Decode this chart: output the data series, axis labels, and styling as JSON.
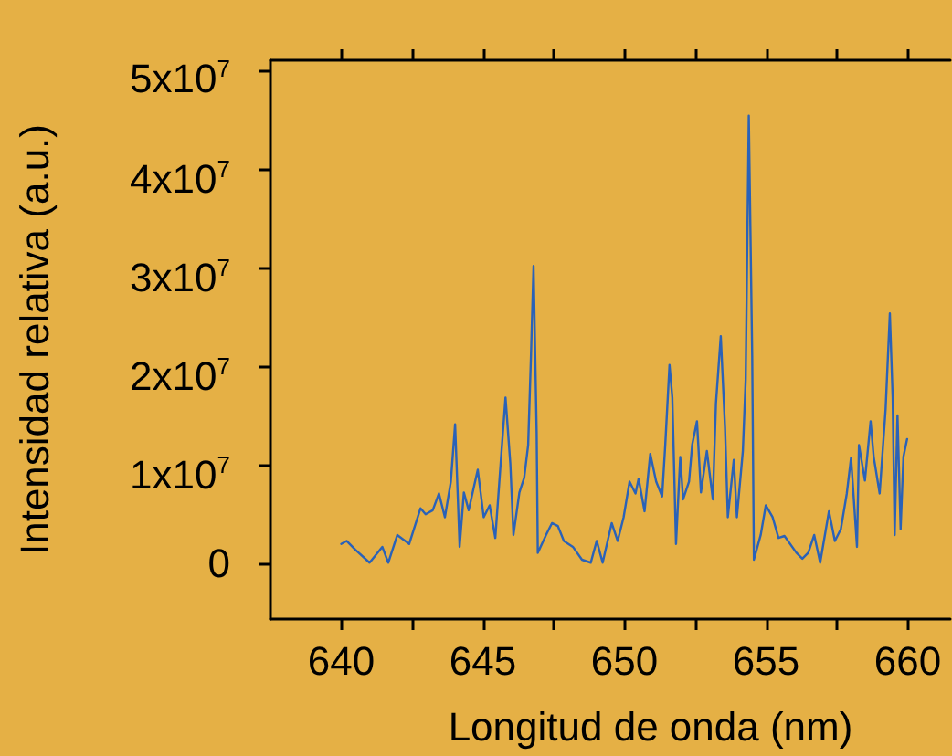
{
  "chart_data": {
    "type": "line",
    "xlabel": "Longitud de onda (nm)",
    "ylabel": "Intensidad relativa (a.u.)",
    "xlim": [
      637.5,
      661.5
    ],
    "ylim": [
      -5500000,
      51000000
    ],
    "xticks": [
      640,
      {
        "value": 642.5,
        "label": null
      },
      645,
      {
        "value": 647.5,
        "label": null
      },
      650,
      {
        "value": 652.5,
        "label": null
      },
      655,
      {
        "value": 657.5,
        "label": null
      },
      660
    ],
    "yticks": [
      0,
      {
        "value": 10000000,
        "label": "1x10$^{7}$"
      },
      {
        "value": 20000000,
        "label": "2x10$^{7}$"
      },
      {
        "value": 30000000,
        "label": "3x10$^{7}$"
      },
      {
        "value": 40000000,
        "label": "4x10$^{7}$"
      },
      {
        "value": 50000000,
        "label": "5x10$^{7}$"
      }
    ],
    "grid": false,
    "marker": "none",
    "line_style": "solid",
    "series": [
      {
        "color": "#2a62b8",
        "x": [
          640.0,
          640.19,
          640.5,
          641.0,
          641.45,
          641.66,
          641.98,
          642.4,
          642.6,
          642.8,
          642.98,
          643.23,
          643.45,
          643.66,
          643.87,
          644.02,
          644.18,
          644.33,
          644.5,
          644.82,
          645.03,
          645.24,
          645.44,
          645.66,
          645.8,
          645.97,
          646.08,
          646.29,
          646.46,
          646.6,
          646.7,
          646.79,
          646.9,
          646.94,
          647.23,
          647.44,
          647.65,
          647.86,
          648.18,
          648.5,
          648.81,
          649.02,
          649.23,
          649.55,
          649.76,
          649.97,
          650.18,
          650.39,
          650.5,
          650.71,
          650.91,
          651.12,
          651.33,
          651.44,
          651.59,
          651.69,
          651.82,
          651.97,
          652.07,
          652.28,
          652.39,
          652.56,
          652.7,
          652.91,
          653.12,
          653.23,
          653.4,
          653.55,
          653.65,
          653.86,
          653.97,
          654.18,
          654.28,
          654.39,
          654.51,
          654.57,
          654.81,
          654.99,
          655.23,
          655.44,
          655.65,
          656.07,
          656.28,
          656.49,
          656.7,
          656.91,
          657.22,
          657.43,
          657.64,
          657.85,
          658.0,
          658.21,
          658.28,
          658.49,
          658.69,
          658.8,
          659.01,
          659.22,
          659.37,
          659.47,
          659.54,
          659.64,
          659.75,
          659.85,
          659.98
        ],
        "values": [
          2100000,
          2400000,
          1500000,
          200000,
          1800000,
          200000,
          3000000,
          2100000,
          3900000,
          5700000,
          5100000,
          5500000,
          7200000,
          4800000,
          8400000,
          14200000,
          1800000,
          7300000,
          5500000,
          9600000,
          4800000,
          6000000,
          2700000,
          11500000,
          16900000,
          10200000,
          3000000,
          7300000,
          8800000,
          12100000,
          21200000,
          30200000,
          13300000,
          1200000,
          3000000,
          4200000,
          3900000,
          2400000,
          1800000,
          500000,
          200000,
          2400000,
          200000,
          4200000,
          2400000,
          4800000,
          8400000,
          7200000,
          8700000,
          5400000,
          11200000,
          8400000,
          6900000,
          12100000,
          20200000,
          16900000,
          2100000,
          10900000,
          6600000,
          8400000,
          12100000,
          14500000,
          7300000,
          11500000,
          6600000,
          16300000,
          23100000,
          13900000,
          4800000,
          10600000,
          4800000,
          11500000,
          18700000,
          45400000,
          21100000,
          500000,
          3000000,
          6000000,
          4800000,
          2700000,
          2900000,
          1200000,
          600000,
          1200000,
          3000000,
          200000,
          5400000,
          2400000,
          3600000,
          7200000,
          10800000,
          1800000,
          12100000,
          8500000,
          14500000,
          10900000,
          7200000,
          15700000,
          25400000,
          16900000,
          3000000,
          15100000,
          3600000,
          10900000,
          12700000
        ]
      }
    ]
  }
}
